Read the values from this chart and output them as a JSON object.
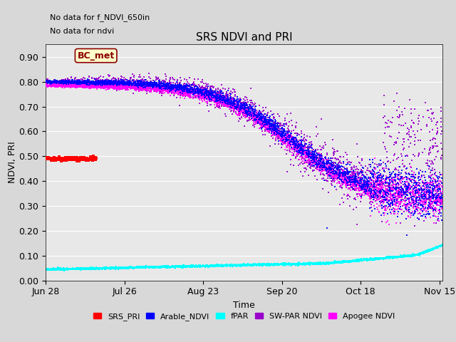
{
  "title": "SRS NDVI and PRI",
  "xlabel": "Time",
  "ylabel": "NDVI, PRI",
  "annotation_lines": [
    "No data for f_NDVI_650in",
    "No data for ndvi"
  ],
  "bc_met_label": "BC_met",
  "ylim": [
    0.0,
    0.95
  ],
  "xlim_days": [
    0,
    141
  ],
  "x_ticks_days": [
    0,
    28,
    56,
    84,
    112,
    140
  ],
  "x_tick_labels": [
    "Jun 28",
    "Jul 26",
    "Aug 23",
    "Sep 20",
    "Oct 18",
    "Nov 15"
  ],
  "y_ticks": [
    0.0,
    0.1,
    0.2,
    0.3,
    0.4,
    0.5,
    0.6,
    0.7,
    0.8,
    0.9
  ],
  "colors": {
    "SRS_PRI": "#ff0000",
    "Arable_NDVI": "#0000ff",
    "fPAR": "#00ffff",
    "SW_PAR_NDVI": "#9900cc",
    "Apogee_NDVI": "#ff00ff"
  },
  "legend_labels": [
    "SRS_PRI",
    "Arable_NDVI",
    "fPAR",
    "SW-PAR NDVI",
    "Apogee NDVI"
  ],
  "bg_color": "#e8e8e8",
  "fig_bg_color": "#d8d8d8"
}
